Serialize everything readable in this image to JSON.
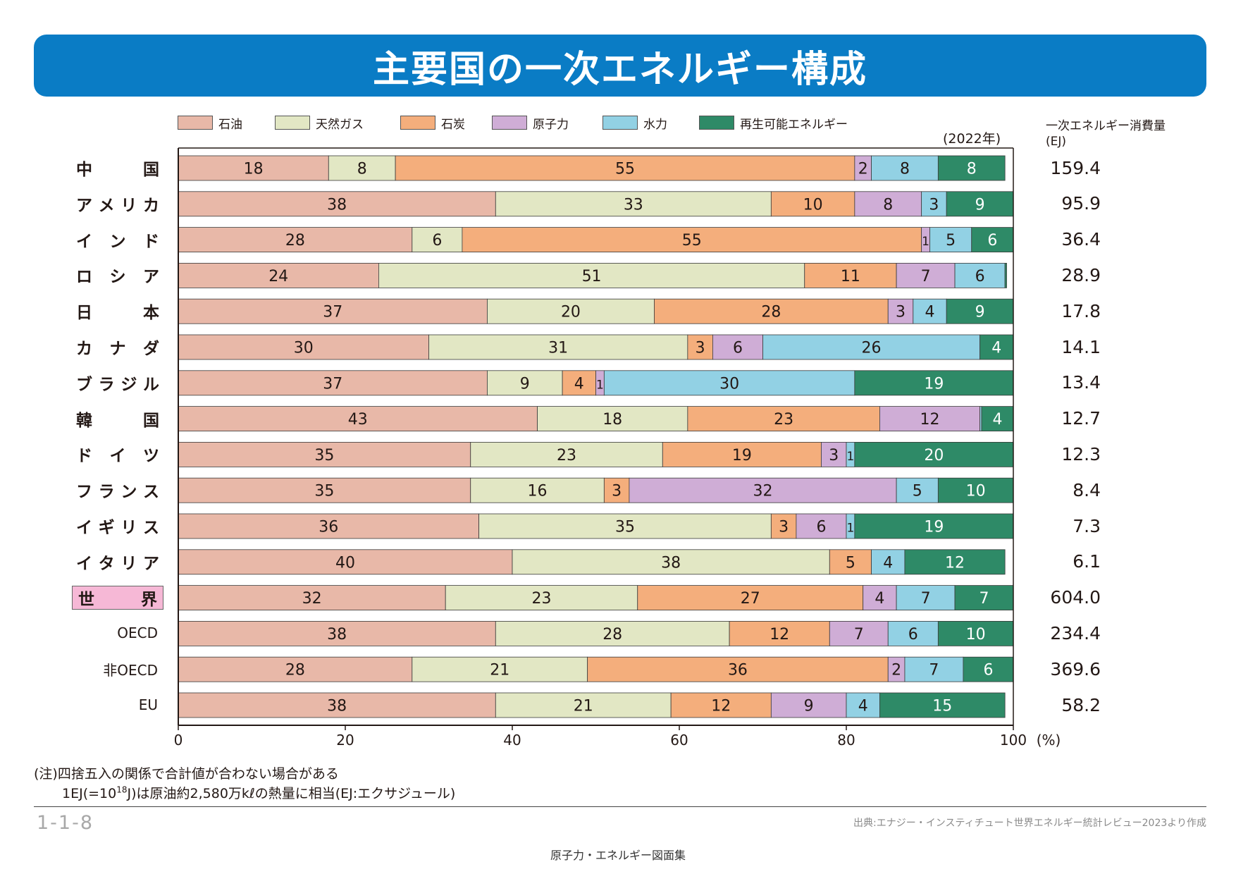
{
  "header": {
    "title": "主要国の一次エネルギー構成"
  },
  "year_note": "(2022年)",
  "consumption_header": {
    "line1": "一次エネルギー消費量",
    "line2": "(EJ)"
  },
  "colors": {
    "oil": "#e8b8a8",
    "gas": "#e2e7c4",
    "coal": "#f4ae7c",
    "nuclear": "#cfadd6",
    "hydro": "#92d1e4",
    "renewable": "#2e8a67",
    "title_bg": "#0a7cc5",
    "world_label_bg": "#f6b8d6"
  },
  "chart_data": {
    "type": "bar",
    "orientation": "horizontal-stacked",
    "x_axis": {
      "range": [
        0,
        100
      ],
      "ticks": [
        "0",
        "20",
        "40",
        "60",
        "80",
        "100"
      ],
      "unit": "(%)"
    },
    "series": [
      {
        "key": "oil",
        "name": "石油"
      },
      {
        "key": "gas",
        "name": "天然ガス"
      },
      {
        "key": "coal",
        "name": "石炭"
      },
      {
        "key": "nuclear",
        "name": "原子力"
      },
      {
        "key": "hydro",
        "name": "水力"
      },
      {
        "key": "renewable",
        "name": "再生可能エネルギー"
      }
    ],
    "categories": [
      {
        "label": "中国",
        "chars": [
          "中",
          "国"
        ],
        "values": [
          18,
          8,
          55,
          2,
          8,
          8
        ],
        "labels": [
          "18",
          "8",
          "55",
          "2",
          "8",
          "8"
        ],
        "consumption": "159.4"
      },
      {
        "label": "アメリカ",
        "chars": [
          "ア",
          "メ",
          "リ",
          "カ"
        ],
        "values": [
          38,
          33,
          10,
          8,
          3,
          9
        ],
        "labels": [
          "38",
          "33",
          "10",
          "8",
          "3",
          "9"
        ],
        "consumption": "95.9"
      },
      {
        "label": "インド",
        "chars": [
          "イ",
          "ン",
          "ド"
        ],
        "values": [
          28,
          6,
          55,
          1,
          5,
          6
        ],
        "labels": [
          "28",
          "6",
          "55",
          "1",
          "5",
          "6"
        ],
        "consumption": "36.4"
      },
      {
        "label": "ロシア",
        "chars": [
          "ロ",
          "シ",
          "ア"
        ],
        "values": [
          24,
          51,
          11,
          7,
          6,
          0.2
        ],
        "labels": [
          "24",
          "51",
          "11",
          "7",
          "6",
          ""
        ],
        "consumption": "28.9"
      },
      {
        "label": "日本",
        "chars": [
          "日",
          "本"
        ],
        "values": [
          37,
          20,
          28,
          3,
          4,
          9
        ],
        "labels": [
          "37",
          "20",
          "28",
          "3",
          "4",
          "9"
        ],
        "consumption": "17.8"
      },
      {
        "label": "カナダ",
        "chars": [
          "カ",
          "ナ",
          "ダ"
        ],
        "values": [
          30,
          31,
          3,
          6,
          26,
          4
        ],
        "labels": [
          "30",
          "31",
          "3",
          "6",
          "26",
          "4"
        ],
        "consumption": "14.1"
      },
      {
        "label": "ブラジル",
        "chars": [
          "ブ",
          "ラ",
          "ジ",
          "ル"
        ],
        "values": [
          37,
          9,
          4,
          1,
          30,
          19
        ],
        "labels": [
          "37",
          "9",
          "4",
          "1",
          "30",
          "19"
        ],
        "consumption": "13.4"
      },
      {
        "label": "韓国",
        "chars": [
          "韓",
          "国"
        ],
        "values": [
          43,
          18,
          23,
          12,
          0.2,
          4
        ],
        "labels": [
          "43",
          "18",
          "23",
          "12",
          "",
          "4"
        ],
        "consumption": "12.7"
      },
      {
        "label": "ドイツ",
        "chars": [
          "ド",
          "イ",
          "ツ"
        ],
        "values": [
          35,
          23,
          19,
          3,
          1,
          20
        ],
        "labels": [
          "35",
          "23",
          "19",
          "3",
          "1",
          "20"
        ],
        "consumption": "12.3"
      },
      {
        "label": "フランス",
        "chars": [
          "フ",
          "ラ",
          "ン",
          "ス"
        ],
        "values": [
          35,
          16,
          3,
          32,
          5,
          10
        ],
        "labels": [
          "35",
          "16",
          "3",
          "32",
          "5",
          "10"
        ],
        "consumption": "8.4"
      },
      {
        "label": "イギリス",
        "chars": [
          "イ",
          "ギ",
          "リ",
          "ス"
        ],
        "values": [
          36,
          35,
          3,
          6,
          1,
          19
        ],
        "labels": [
          "36",
          "35",
          "3",
          "6",
          "1",
          "19"
        ],
        "consumption": "7.3"
      },
      {
        "label": "イタリア",
        "chars": [
          "イ",
          "タ",
          "リ",
          "ア"
        ],
        "values": [
          40,
          38,
          5,
          0,
          4,
          12
        ],
        "labels": [
          "40",
          "38",
          "5",
          "",
          "4",
          "12"
        ],
        "consumption": "6.1"
      },
      {
        "label": "世界",
        "chars": [
          "世",
          "界"
        ],
        "values": [
          32,
          23,
          27,
          4,
          7,
          7
        ],
        "labels": [
          "32",
          "23",
          "27",
          "4",
          "7",
          "7"
        ],
        "consumption": "604.0",
        "highlight": true
      },
      {
        "label": "OECD",
        "chars": [
          "OECD"
        ],
        "values": [
          38,
          28,
          12,
          7,
          6,
          10
        ],
        "labels": [
          "38",
          "28",
          "12",
          "7",
          "6",
          "10"
        ],
        "consumption": "234.4",
        "group": true
      },
      {
        "label": "非OECD",
        "chars": [
          "非OECD"
        ],
        "values": [
          28,
          21,
          36,
          2,
          7,
          6
        ],
        "labels": [
          "28",
          "21",
          "36",
          "2",
          "7",
          "6"
        ],
        "consumption": "369.6",
        "group": true
      },
      {
        "label": "EU",
        "chars": [
          "EU"
        ],
        "values": [
          38,
          21,
          12,
          9,
          4,
          15
        ],
        "labels": [
          "38",
          "21",
          "12",
          "9",
          "4",
          "15"
        ],
        "consumption": "58.2",
        "group": true
      }
    ]
  },
  "notes": {
    "line1": "(注)四捨五入の関係で合計値が合わない場合がある",
    "line2_prefix": "1EJ(=10",
    "line2_sup": "18",
    "line2_suffix": "J)は原油約2,580万kℓの熱量に相当(EJ:エクサジュール)"
  },
  "footer": {
    "figure_number": "1-1-8",
    "source": "出典:エナジー・インスティチュート世界エネルギー統計レビュー2023より作成",
    "publication": "原子力・エネルギー図面集"
  }
}
